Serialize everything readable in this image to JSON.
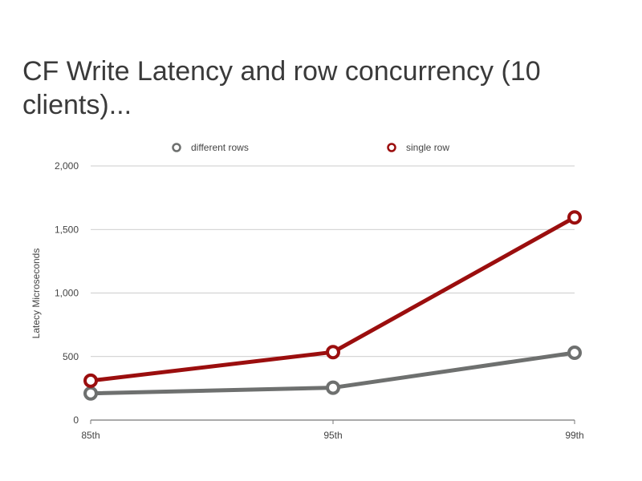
{
  "slide": {
    "title": "CF Write Latency and row concurrency (10 clients)..."
  },
  "chart_data": {
    "type": "line",
    "title": "",
    "xlabel": "",
    "ylabel": "Latecy Microseconds",
    "categories": [
      "85th",
      "95th",
      "99th"
    ],
    "ylim": [
      0,
      2000
    ],
    "yticks": [
      0,
      500,
      1000,
      1500,
      2000
    ],
    "ytick_labels": [
      "0",
      "500",
      "1,000",
      "1,500",
      "2,000"
    ],
    "grid": true,
    "legend_position": "top",
    "series": [
      {
        "name": "different rows",
        "values": [
          210,
          255,
          530
        ],
        "color": "#6e706f"
      },
      {
        "name": "single row",
        "values": [
          310,
          535,
          1595
        ],
        "color": "#9b0e0e"
      }
    ]
  }
}
